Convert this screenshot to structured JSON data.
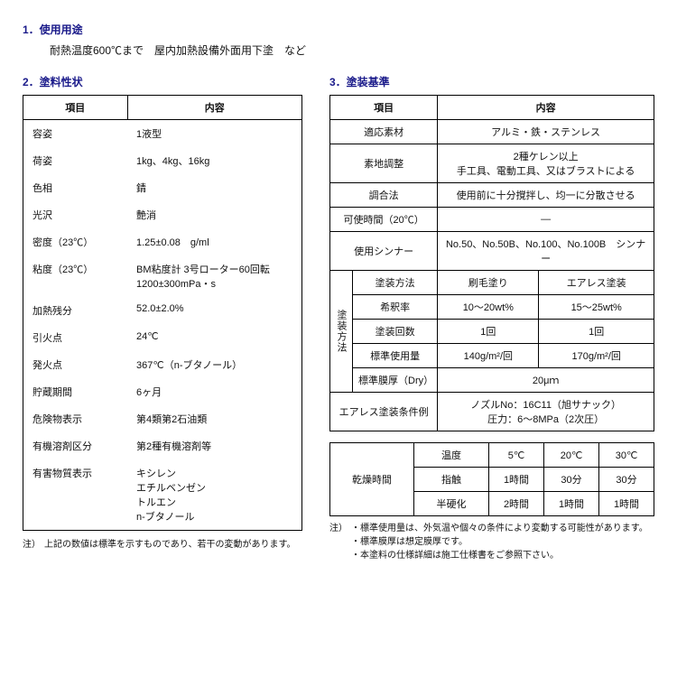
{
  "sections": {
    "usage_title": "1．使用用途",
    "usage_text": "耐熱温度600℃まで　屋内加熱設備外面用下塗　など",
    "props_title": "2．塗料性状",
    "standards_title": "3．塗装基準"
  },
  "props_table": {
    "headers": [
      "項目",
      "内容"
    ],
    "rows": [
      [
        "容姿",
        "1液型"
      ],
      [
        "荷姿",
        "1kg、4kg、16kg"
      ],
      [
        "色相",
        "錆"
      ],
      [
        "光沢",
        "艶消"
      ],
      [
        "密度（23℃）",
        "1.25±0.08　g/ml"
      ],
      [
        "粘度（23℃）",
        "BM粘度計 3号ローター60回転\n1200±300mPa・s"
      ],
      [
        "加熱残分",
        "52.0±2.0%"
      ],
      [
        "引火点",
        "24℃"
      ],
      [
        "発火点",
        "367℃（n-ブタノール）"
      ],
      [
        "貯蔵期間",
        "6ヶ月"
      ],
      [
        "危険物表示",
        "第4類第2石油類"
      ],
      [
        "有機溶剤区分",
        "第2種有機溶剤等"
      ],
      [
        "有害物質表示",
        "キシレン\nエチルベンゼン\nトルエン\nn-ブタノール"
      ]
    ]
  },
  "props_note": {
    "label": "注）",
    "text": "上記の数値は標準を示すものであり、若干の変動があります。"
  },
  "standards": {
    "headers": [
      "項目",
      "内容"
    ],
    "material_label": "適応素材",
    "material_value": "アルミ・鉄・ステンレス",
    "surface_label": "素地調整",
    "surface_value": "2種ケレン以上\n手工具、電動工具、又はブラストによる",
    "mix_label": "調合法",
    "mix_value": "使用前に十分撹拌し、均一に分散させる",
    "potlife_label": "可使時間（20℃）",
    "potlife_value": "―",
    "thinner_label": "使用シンナー",
    "thinner_value": "No.50、No.50B、No.100、No.100B　シンナー",
    "method_group": "塗装方法",
    "method_row_label": "塗装方法",
    "method_brush": "刷毛塗り",
    "method_airless": "エアレス塗装",
    "dilution_label": "希釈率",
    "dilution_brush": "10～20wt%",
    "dilution_airless": "15～25wt%",
    "coats_label": "塗装回数",
    "coats_brush": "1回",
    "coats_airless": "1回",
    "usage_label": "標準使用量",
    "usage_brush": "140g/m²/回",
    "usage_airless": "170g/m²/回",
    "thickness_label": "標準膜厚（Dry）",
    "thickness_value": "20μｍ",
    "airless_cond_label": "エアレス塗装条件例",
    "airless_cond_value": "ノズルNo：16C11（旭サナック）\n圧力：6～8MPa（2次圧）"
  },
  "dry_table": {
    "group": "乾燥時間",
    "temp_label": "温度",
    "temps": [
      "5℃",
      "20℃",
      "30℃"
    ],
    "touch_label": "指触",
    "touch": [
      "1時間",
      "30分",
      "30分"
    ],
    "half_label": "半硬化",
    "half": [
      "2時間",
      "1時間",
      "1時間"
    ]
  },
  "right_notes": {
    "label": "注）",
    "lines": [
      "・標準使用量は、外気温や個々の条件により変動する可能性があります。",
      "・標準膜厚は想定膜厚です。",
      "・本塗料の仕様詳細は施工仕様書をご参照下さい。"
    ]
  }
}
